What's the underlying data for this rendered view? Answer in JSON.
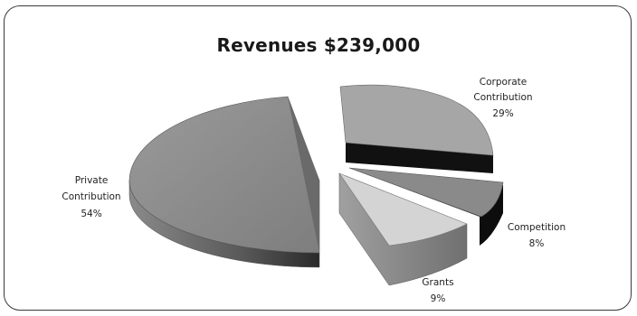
{
  "chart_data": {
    "type": "pie",
    "title": "Revenues $239,000",
    "slices": [
      {
        "category": "Private Contribution",
        "percent": "54%",
        "value": 54
      },
      {
        "category": "Corporate Contribution",
        "percent": "29%",
        "value": 29
      },
      {
        "category": "Competition",
        "percent": "8%",
        "value": 8
      },
      {
        "category": "Grants",
        "percent": "9%",
        "value": 9
      }
    ],
    "style": "3d-exploded",
    "colors": {
      "private_top": "#8d8d8d",
      "corporate_top": "#a6a6a6",
      "competition_top": "#8a8a8a",
      "grants_top": "#d4d4d4",
      "side": "#5a5a5a",
      "dark_side": "#111111"
    }
  }
}
